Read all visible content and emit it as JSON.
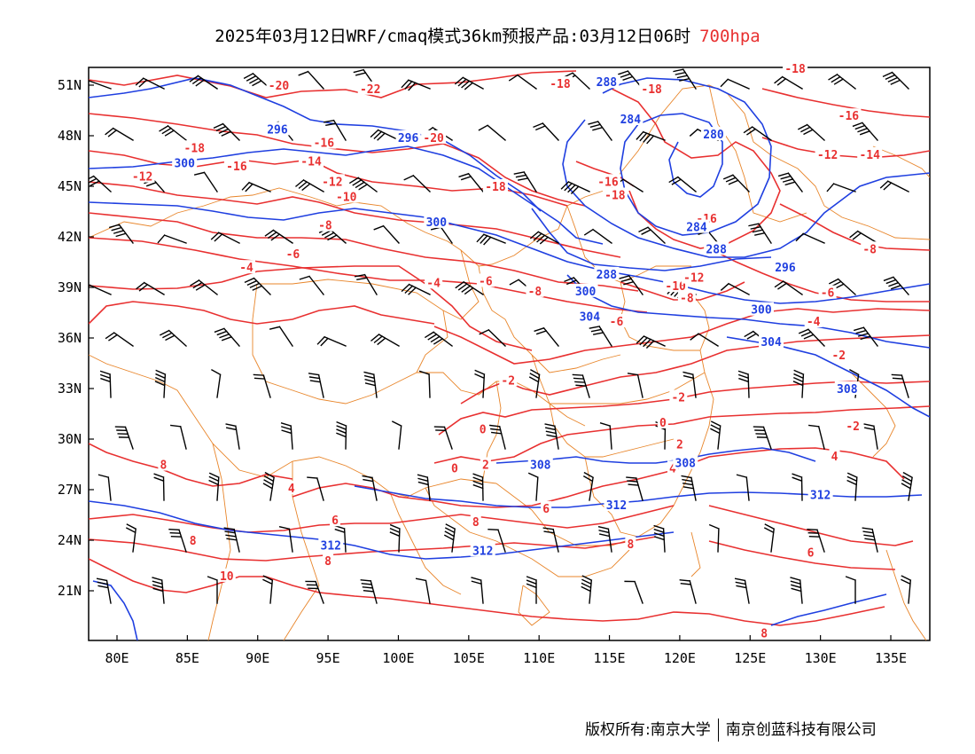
{
  "title": {
    "text": "2025年03月12日WRF/cmaq模式36km预报产品:03月12日06时",
    "level": "700hpa"
  },
  "colors": {
    "temperature": "#e83030",
    "height": "#1f3fe0",
    "border": "#e8852a",
    "wind": "#000000",
    "level_text": "#e83030"
  },
  "axes": {
    "lon_ticks": [
      "80E",
      "85E",
      "90E",
      "95E",
      "100E",
      "105E",
      "110E",
      "115E",
      "120E",
      "125E",
      "130E",
      "135E"
    ],
    "lat_ticks": [
      "51N",
      "48N",
      "45N",
      "42N",
      "39N",
      "36N",
      "33N",
      "30N",
      "27N",
      "24N",
      "21N"
    ]
  },
  "temperature_labels": [
    {
      "text": "-20",
      "lon": 91.5,
      "lat": 51.0
    },
    {
      "text": "-22",
      "lon": 98.0,
      "lat": 50.8
    },
    {
      "text": "-20",
      "lon": 102.5,
      "lat": 47.9
    },
    {
      "text": "-18",
      "lon": 85.5,
      "lat": 47.3
    },
    {
      "text": "-16",
      "lon": 88.5,
      "lat": 46.2
    },
    {
      "text": "-16",
      "lon": 94.7,
      "lat": 47.6
    },
    {
      "text": "-14",
      "lon": 93.8,
      "lat": 46.5
    },
    {
      "text": "-12",
      "lon": 81.8,
      "lat": 45.6
    },
    {
      "text": "-12",
      "lon": 95.3,
      "lat": 45.3
    },
    {
      "text": "-10",
      "lon": 96.3,
      "lat": 44.4
    },
    {
      "text": "-18",
      "lon": 111.5,
      "lat": 51.1
    },
    {
      "text": "-18",
      "lon": 118.0,
      "lat": 50.8
    },
    {
      "text": "-18",
      "lon": 128.2,
      "lat": 52.0
    },
    {
      "text": "-16",
      "lon": 132.0,
      "lat": 49.2
    },
    {
      "text": "-14",
      "lon": 133.5,
      "lat": 46.9
    },
    {
      "text": "-12",
      "lon": 130.5,
      "lat": 46.9
    },
    {
      "text": "-18",
      "lon": 106.9,
      "lat": 45.0
    },
    {
      "text": "-16",
      "lon": 114.9,
      "lat": 45.3
    },
    {
      "text": "-18",
      "lon": 115.4,
      "lat": 44.5
    },
    {
      "text": "-16",
      "lon": 121.9,
      "lat": 43.1
    },
    {
      "text": "-8",
      "lon": 94.8,
      "lat": 42.7
    },
    {
      "text": "-6",
      "lon": 92.5,
      "lat": 41.0
    },
    {
      "text": "-4",
      "lon": 89.2,
      "lat": 40.2
    },
    {
      "text": "-4",
      "lon": 102.5,
      "lat": 39.3
    },
    {
      "text": "-6",
      "lon": 106.2,
      "lat": 39.4
    },
    {
      "text": "-8",
      "lon": 109.7,
      "lat": 38.8
    },
    {
      "text": "-8",
      "lon": 133.5,
      "lat": 41.3
    },
    {
      "text": "-6",
      "lon": 130.5,
      "lat": 38.7
    },
    {
      "text": "-10",
      "lon": 119.7,
      "lat": 39.1
    },
    {
      "text": "-12",
      "lon": 121.0,
      "lat": 39.6
    },
    {
      "text": "-8",
      "lon": 120.5,
      "lat": 38.4
    },
    {
      "text": "-6",
      "lon": 115.5,
      "lat": 37.0
    },
    {
      "text": "-4",
      "lon": 129.5,
      "lat": 37.0
    },
    {
      "text": "-2",
      "lon": 131.3,
      "lat": 35.0
    },
    {
      "text": "-2",
      "lon": 107.8,
      "lat": 33.5
    },
    {
      "text": "-2",
      "lon": 119.9,
      "lat": 32.5
    },
    {
      "text": "0",
      "lon": 106.0,
      "lat": 30.6
    },
    {
      "text": "0",
      "lon": 118.8,
      "lat": 31.0
    },
    {
      "text": "2",
      "lon": 120.0,
      "lat": 29.7
    },
    {
      "text": "-2",
      "lon": 132.3,
      "lat": 30.8
    },
    {
      "text": "4",
      "lon": 131.0,
      "lat": 29.0
    },
    {
      "text": "2",
      "lon": 106.2,
      "lat": 28.5
    },
    {
      "text": "0",
      "lon": 104.0,
      "lat": 28.3
    },
    {
      "text": "4",
      "lon": 119.5,
      "lat": 28.3
    },
    {
      "text": "6",
      "lon": 110.5,
      "lat": 25.9
    },
    {
      "text": "8",
      "lon": 105.5,
      "lat": 25.1
    },
    {
      "text": "6",
      "lon": 95.5,
      "lat": 25.2
    },
    {
      "text": "4",
      "lon": 92.4,
      "lat": 27.1
    },
    {
      "text": "8",
      "lon": 83.3,
      "lat": 28.5
    },
    {
      "text": "8",
      "lon": 85.4,
      "lat": 24.0
    },
    {
      "text": "8",
      "lon": 95.0,
      "lat": 22.8
    },
    {
      "text": "10",
      "lon": 87.8,
      "lat": 21.9
    },
    {
      "text": "8",
      "lon": 116.5,
      "lat": 23.8
    },
    {
      "text": "6",
      "lon": 129.3,
      "lat": 23.3
    },
    {
      "text": "8",
      "lon": 126.0,
      "lat": 18.5
    }
  ],
  "height_labels": [
    {
      "text": "296",
      "lon": 91.4,
      "lat": 48.4
    },
    {
      "text": "296",
      "lon": 100.7,
      "lat": 47.9
    },
    {
      "text": "300",
      "lon": 84.8,
      "lat": 46.4
    },
    {
      "text": "300",
      "lon": 102.7,
      "lat": 42.9
    },
    {
      "text": "288",
      "lon": 114.8,
      "lat": 51.2
    },
    {
      "text": "284",
      "lon": 116.5,
      "lat": 49.0
    },
    {
      "text": "280",
      "lon": 122.4,
      "lat": 48.1
    },
    {
      "text": "284",
      "lon": 121.2,
      "lat": 42.6
    },
    {
      "text": "288",
      "lon": 122.6,
      "lat": 41.3
    },
    {
      "text": "288",
      "lon": 114.8,
      "lat": 39.8
    },
    {
      "text": "300",
      "lon": 113.3,
      "lat": 38.8
    },
    {
      "text": "304",
      "lon": 113.6,
      "lat": 37.3
    },
    {
      "text": "296",
      "lon": 127.5,
      "lat": 40.2
    },
    {
      "text": "300",
      "lon": 125.8,
      "lat": 37.7
    },
    {
      "text": "304",
      "lon": 126.5,
      "lat": 35.8
    },
    {
      "text": "308",
      "lon": 131.9,
      "lat": 33.0
    },
    {
      "text": "308",
      "lon": 110.1,
      "lat": 28.5
    },
    {
      "text": "308",
      "lon": 120.4,
      "lat": 28.6
    },
    {
      "text": "312",
      "lon": 130.0,
      "lat": 26.7
    },
    {
      "text": "312",
      "lon": 115.5,
      "lat": 26.1
    },
    {
      "text": "312",
      "lon": 95.2,
      "lat": 23.7
    },
    {
      "text": "312",
      "lon": 106.0,
      "lat": 23.4
    }
  ],
  "footer": {
    "left": "版权所有:南京大学",
    "right": "南京创蓝科技有限公司"
  }
}
